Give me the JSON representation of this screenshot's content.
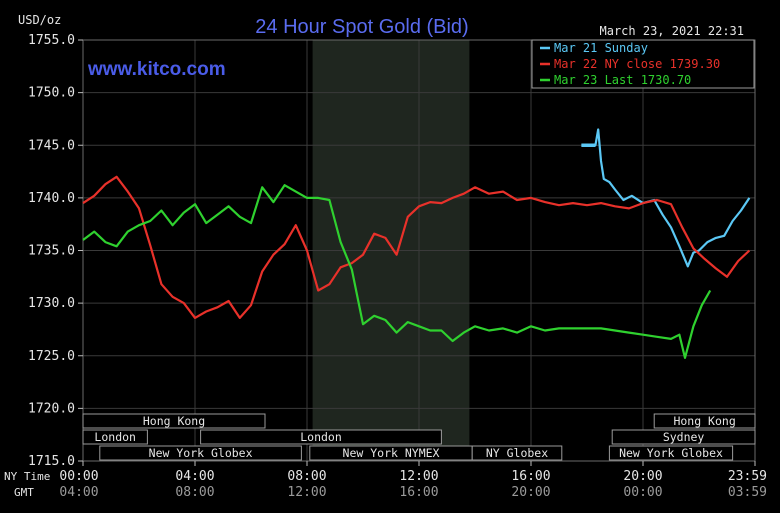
{
  "chart_data": {
    "type": "line",
    "title": "24 Hour Spot Gold (Bid)",
    "watermark": "www.kitco.com",
    "timestamp": "March 23, 2021 22:31",
    "ylabel": "USD/oz",
    "ylim": [
      1715.0,
      1755.0
    ],
    "yticks": [
      "1755.0",
      "1750.0",
      "1745.0",
      "1740.0",
      "1735.0",
      "1730.0",
      "1725.0",
      "1720.0",
      "1715.0"
    ],
    "xlim": [
      0,
      24
    ],
    "x_row_label_ny": "NY Time",
    "x_row_label_gmt": "GMT",
    "xticks_ny": [
      "00:00",
      "04:00",
      "08:00",
      "12:00",
      "16:00",
      "20:00",
      "23:59"
    ],
    "xticks_gmt": [
      "04:00",
      "08:00",
      "12:00",
      "16:00",
      "20:00",
      "00:00",
      "03:59"
    ],
    "grid": true,
    "legend_position": "top-right",
    "colors": {
      "background": "#000000",
      "grid": "#3a3a3a",
      "shade": "#1f261f",
      "axis_text": "#e6e6e6",
      "title": "#5a6cf0",
      "session_text": "#e6e6e6",
      "session_border": "#9a9a9a"
    },
    "sessions": [
      {
        "label": "Hong Kong",
        "row": 0,
        "start": 0,
        "end": 6.5
      },
      {
        "label": "Hong Kong",
        "row": 0,
        "start": 20.4,
        "end": 24
      },
      {
        "label": "London",
        "row": 1,
        "start": 0,
        "end": 2.3
      },
      {
        "label": "London",
        "row": 1,
        "start": 4.2,
        "end": 12.8
      },
      {
        "label": "Sydney",
        "row": 1,
        "start": 18.9,
        "end": 24
      },
      {
        "label": "New York Globex",
        "row": 2,
        "start": 0.6,
        "end": 7.8
      },
      {
        "label": "New York NYMEX",
        "row": 2,
        "start": 8.1,
        "end": 13.9
      },
      {
        "label": "NY Globex",
        "row": 2,
        "start": 13.9,
        "end": 17.1
      },
      {
        "label": "New York Globex",
        "row": 2,
        "start": 18.8,
        "end": 23.2
      }
    ],
    "shaded_region": [
      8.2,
      13.8
    ],
    "series": [
      {
        "name": "Mar 21 Sunday",
        "color": "#5bc8f5",
        "x": [
          17.8,
          18.3,
          18.4,
          18.5,
          18.6,
          18.8,
          19.0,
          19.3,
          19.6,
          20.0,
          20.4,
          20.7,
          21.0,
          21.3,
          21.6,
          21.8,
          22.0,
          22.3,
          22.6,
          22.9,
          23.2,
          23.5,
          23.8
        ],
        "values": [
          1745.0,
          1745.0,
          1746.5,
          1743.5,
          1741.8,
          1741.5,
          1740.8,
          1739.8,
          1740.2,
          1739.5,
          1739.8,
          1738.4,
          1737.2,
          1735.4,
          1733.5,
          1734.8,
          1735.0,
          1735.8,
          1736.2,
          1736.4,
          1737.8,
          1738.8,
          1740.0
        ]
      },
      {
        "name": "Mar 22 NY close 1739.30",
        "color": "#e8312a",
        "x": [
          0,
          0.4,
          0.8,
          1.2,
          1.6,
          2.0,
          2.4,
          2.8,
          3.2,
          3.6,
          4.0,
          4.4,
          4.8,
          5.2,
          5.6,
          6.0,
          6.4,
          6.8,
          7.2,
          7.6,
          8.0,
          8.4,
          8.8,
          9.2,
          9.6,
          10.0,
          10.4,
          10.8,
          11.2,
          11.6,
          12.0,
          12.4,
          12.8,
          13.2,
          13.6,
          14.0,
          14.5,
          15.0,
          15.5,
          16.0,
          16.5,
          17.0,
          17.5,
          18.0,
          18.5,
          19.0,
          19.5,
          20.0,
          20.5,
          21.0,
          21.4,
          21.8,
          22.2,
          22.6,
          23.0,
          23.4,
          23.8
        ],
        "values": [
          1739.5,
          1740.2,
          1741.3,
          1742.0,
          1740.6,
          1739.0,
          1735.5,
          1731.8,
          1730.6,
          1730.0,
          1728.6,
          1729.2,
          1729.6,
          1730.2,
          1728.6,
          1729.8,
          1733.0,
          1734.6,
          1735.6,
          1737.4,
          1735.0,
          1731.2,
          1731.8,
          1733.4,
          1733.8,
          1734.6,
          1736.6,
          1736.2,
          1734.6,
          1738.2,
          1739.2,
          1739.6,
          1739.5,
          1740.0,
          1740.4,
          1741.0,
          1740.4,
          1740.6,
          1739.8,
          1740.0,
          1739.6,
          1739.3,
          1739.5,
          1739.3,
          1739.5,
          1739.2,
          1739.0,
          1739.5,
          1739.8,
          1739.4,
          1737.2,
          1735.2,
          1734.2,
          1733.3,
          1732.5,
          1734.0,
          1735.0
        ]
      },
      {
        "name": "Mar 23 Last 1730.70",
        "color": "#2fd12f",
        "x": [
          0,
          0.4,
          0.8,
          1.2,
          1.6,
          2.0,
          2.4,
          2.8,
          3.2,
          3.6,
          4.0,
          4.4,
          4.8,
          5.2,
          5.6,
          6.0,
          6.4,
          6.8,
          7.2,
          7.6,
          8.0,
          8.4,
          8.8,
          9.2,
          9.6,
          10.0,
          10.4,
          10.8,
          11.2,
          11.6,
          12.0,
          12.4,
          12.8,
          13.2,
          13.6,
          14.0,
          14.5,
          15.0,
          15.5,
          16.0,
          16.5,
          17.0,
          17.5,
          18.0,
          18.5,
          19.0,
          19.5,
          20.0,
          20.5,
          21.0,
          21.3,
          21.5,
          21.8,
          22.1,
          22.4
        ],
        "values": [
          1736.0,
          1736.8,
          1735.8,
          1735.4,
          1736.8,
          1737.4,
          1737.8,
          1738.8,
          1737.4,
          1738.6,
          1739.4,
          1737.6,
          1738.4,
          1739.2,
          1738.2,
          1737.6,
          1741.0,
          1739.6,
          1741.2,
          1740.6,
          1740.0,
          1740.0,
          1739.8,
          1735.8,
          1733.2,
          1728.0,
          1728.8,
          1728.4,
          1727.2,
          1728.2,
          1727.8,
          1727.4,
          1727.4,
          1726.4,
          1727.2,
          1727.8,
          1727.4,
          1727.6,
          1727.2,
          1727.8,
          1727.4,
          1727.6,
          1727.6,
          1727.6,
          1727.6,
          1727.4,
          1727.2,
          1727.0,
          1726.8,
          1726.6,
          1727.0,
          1724.8,
          1727.8,
          1729.8,
          1731.2
        ]
      }
    ]
  }
}
